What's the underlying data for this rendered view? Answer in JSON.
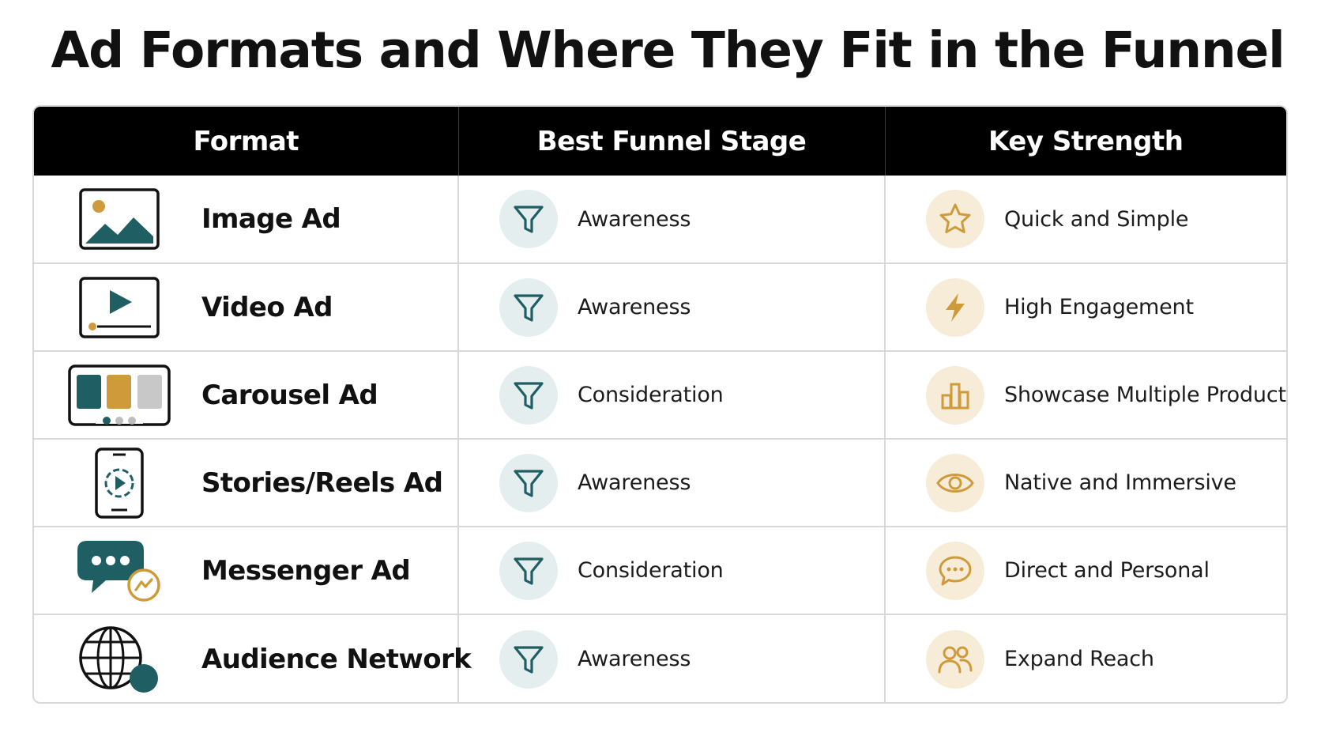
{
  "title": "Ad Formats and Where They Fit in the Funnel",
  "columns": [
    "Format",
    "Best Funnel Stage",
    "Key Strength"
  ],
  "colors": {
    "teal": "#1f5f63",
    "gold": "#cf9a3a",
    "teal_bg": "#e4eeef",
    "gold_bg": "#f7ecd8",
    "header_bg": "#000000"
  },
  "rows": [
    {
      "format": "Image Ad",
      "format_icon": "image-icon",
      "stage": "Awareness",
      "stage_icon": "funnel-icon",
      "strength": "Quick and Simple",
      "strength_icon": "star-icon"
    },
    {
      "format": "Video Ad",
      "format_icon": "video-icon",
      "stage": "Awareness",
      "stage_icon": "funnel-icon",
      "strength": "High Engagement",
      "strength_icon": "lightning-icon"
    },
    {
      "format": "Carousel Ad",
      "format_icon": "carousel-icon",
      "stage": "Consideration",
      "stage_icon": "funnel-icon",
      "strength": "Showcase Multiple Products",
      "strength_icon": "bar-chart-icon"
    },
    {
      "format": "Stories/Reels Ad",
      "format_icon": "phone-play-icon",
      "stage": "Awareness",
      "stage_icon": "funnel-icon",
      "strength": "Native and Immersive",
      "strength_icon": "eye-icon"
    },
    {
      "format": "Messenger Ad",
      "format_icon": "messenger-icon",
      "stage": "Consideration",
      "stage_icon": "funnel-icon",
      "strength": "Direct and Personal",
      "strength_icon": "chat-bubble-icon"
    },
    {
      "format": "Audience Network",
      "format_icon": "globe-icon",
      "stage": "Awareness",
      "stage_icon": "funnel-icon",
      "strength": "Expand Reach",
      "strength_icon": "people-icon"
    }
  ]
}
